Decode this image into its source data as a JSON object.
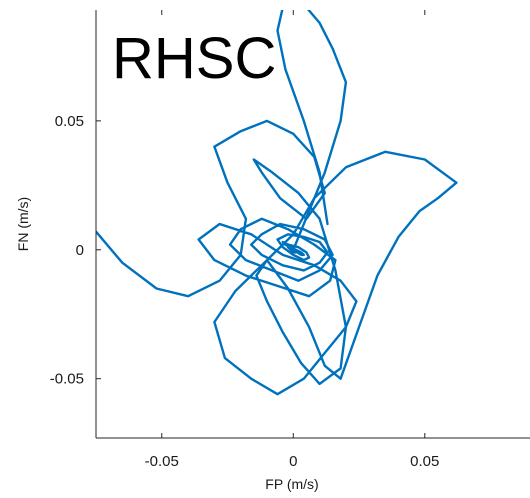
{
  "chart_data": {
    "type": "line",
    "title": "RHSC",
    "xlabel": "FP (m/s)",
    "ylabel": "FN (m/s)",
    "xlim": [
      -0.075,
      0.09
    ],
    "ylim": [
      -0.073,
      0.093
    ],
    "grid": false,
    "line_color": "#0072BD",
    "x_ticks": [
      {
        "value": -0.05,
        "label": "-0.05"
      },
      {
        "value": 0,
        "label": "0"
      },
      {
        "value": 0.05,
        "label": "0.05"
      }
    ],
    "y_ticks": [
      {
        "value": 0.05,
        "label": "0.05"
      },
      {
        "value": 0,
        "label": "0"
      },
      {
        "value": -0.05,
        "label": "-0.05"
      }
    ],
    "series": [
      {
        "x": [
          -0.075,
          -0.065,
          -0.052,
          -0.04,
          -0.028,
          -0.02,
          -0.018,
          -0.025,
          -0.03,
          -0.02,
          -0.01,
          0.0,
          0.008,
          0.012,
          0.005,
          -0.005,
          -0.012,
          -0.015,
          -0.008,
          0.002,
          0.01,
          0.016,
          0.02,
          0.018,
          0.01,
          0.003,
          -0.004,
          -0.01,
          -0.014,
          -0.01,
          -0.002,
          0.006,
          0.012,
          0.018,
          0.025,
          0.032,
          0.04,
          0.048,
          0.055,
          0.062,
          0.05,
          0.035,
          0.02,
          0.008,
          0.0,
          -0.012,
          -0.022,
          -0.03,
          -0.026,
          -0.016,
          -0.006,
          0.004,
          0.012,
          0.02,
          0.024,
          0.018,
          0.008,
          -0.004,
          -0.016,
          -0.028,
          -0.036,
          -0.03,
          -0.018,
          -0.006,
          0.006,
          0.014,
          0.016,
          0.008,
          -0.002,
          -0.012,
          -0.02,
          -0.024,
          -0.018,
          -0.008,
          0.002,
          0.01,
          0.015,
          0.012,
          0.004,
          -0.005,
          -0.012,
          -0.016,
          -0.012,
          -0.004,
          0.004,
          0.01,
          0.013,
          0.01,
          0.004,
          -0.002,
          -0.006,
          -0.004,
          0.0,
          0.004,
          0.006,
          0.005,
          0.002,
          -0.002,
          -0.004,
          -0.003,
          0.0,
          0.003,
          0.004,
          0.003,
          0.001,
          -0.001,
          -0.002,
          -0.001,
          0.0,
          0.001,
          0.0,
          -0.001,
          0.0
        ],
        "y": [
          0.007,
          -0.005,
          -0.015,
          -0.018,
          -0.012,
          -0.002,
          0.012,
          0.026,
          0.04,
          0.046,
          0.05,
          0.045,
          0.036,
          0.022,
          0.012,
          0.02,
          0.03,
          0.035,
          0.03,
          0.022,
          0.012,
          -0.008,
          -0.03,
          -0.046,
          -0.052,
          -0.044,
          -0.032,
          -0.02,
          -0.01,
          -0.004,
          -0.015,
          -0.03,
          -0.045,
          -0.05,
          -0.03,
          -0.01,
          0.005,
          0.015,
          0.02,
          0.026,
          0.035,
          0.038,
          0.032,
          0.02,
          0.006,
          -0.006,
          -0.016,
          -0.028,
          -0.042,
          -0.05,
          -0.056,
          -0.05,
          -0.04,
          -0.03,
          -0.02,
          -0.012,
          -0.006,
          -0.002,
          0.006,
          0.01,
          0.004,
          -0.004,
          -0.01,
          -0.014,
          -0.018,
          -0.012,
          -0.004,
          0.002,
          0.008,
          0.012,
          0.008,
          0.002,
          -0.004,
          -0.008,
          -0.012,
          -0.008,
          -0.002,
          0.004,
          0.008,
          0.01,
          0.006,
          0.002,
          -0.002,
          -0.006,
          -0.008,
          -0.005,
          -0.001,
          0.003,
          0.005,
          0.006,
          0.004,
          0.001,
          -0.002,
          -0.004,
          -0.003,
          -0.001,
          0.001,
          0.002,
          0.003,
          0.002,
          0.0,
          -0.002,
          -0.002,
          -0.001,
          0.0,
          0.001,
          0.001,
          0.0,
          -0.001,
          -0.001,
          0.0,
          0.0,
          0.0
        ]
      },
      {
        "x": [
          0.0,
          0.012,
          0.018,
          0.02,
          0.015,
          0.01,
          0.005,
          0.0,
          -0.004,
          -0.006,
          -0.003,
          0.004,
          0.01,
          0.013
        ],
        "y": [
          0.0,
          0.03,
          0.05,
          0.065,
          0.078,
          0.088,
          0.094,
          0.095,
          0.094,
          0.085,
          0.07,
          0.05,
          0.03,
          0.01
        ]
      }
    ]
  }
}
